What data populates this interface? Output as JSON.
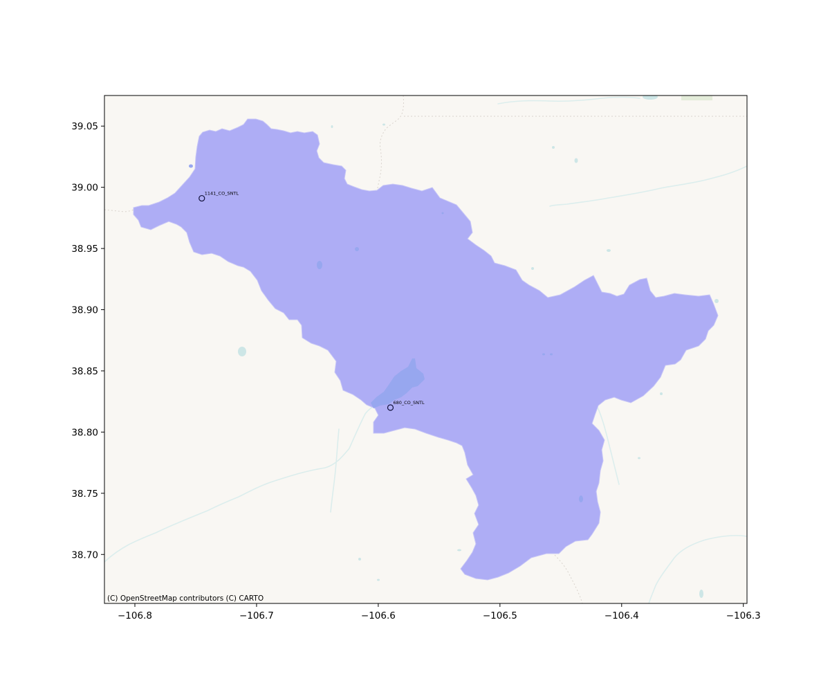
{
  "chart_data": {
    "type": "map",
    "xlim": [
      -106.825,
      -106.297
    ],
    "ylim": [
      38.66,
      39.075
    ],
    "x_ticks": [
      -106.8,
      -106.7,
      -106.6,
      -106.5,
      -106.4,
      -106.3
    ],
    "x_tick_labels": [
      "−106.8",
      "−106.7",
      "−106.6",
      "−106.5",
      "−106.4",
      "−106.3"
    ],
    "y_ticks": [
      38.7,
      38.75,
      38.8,
      38.85,
      38.9,
      38.95,
      39.0,
      39.05
    ],
    "y_tick_labels": [
      "38.70",
      "38.75",
      "38.80",
      "38.85",
      "38.90",
      "38.95",
      "39.00",
      "39.05"
    ],
    "stations": [
      {
        "label": "1141_CO_SNTL",
        "lon": -106.745,
        "lat": 38.991
      },
      {
        "label": "680_CO_SNTL",
        "lon": -106.59,
        "lat": 38.82
      }
    ],
    "basin_fill_color": "#aeadf5",
    "lake_color": "#97a7ef",
    "basemap_color": "#f9f7f3",
    "water_color": "#cde6e6",
    "attribution": "(C) OpenStreetMap contributors (C) CARTO"
  }
}
